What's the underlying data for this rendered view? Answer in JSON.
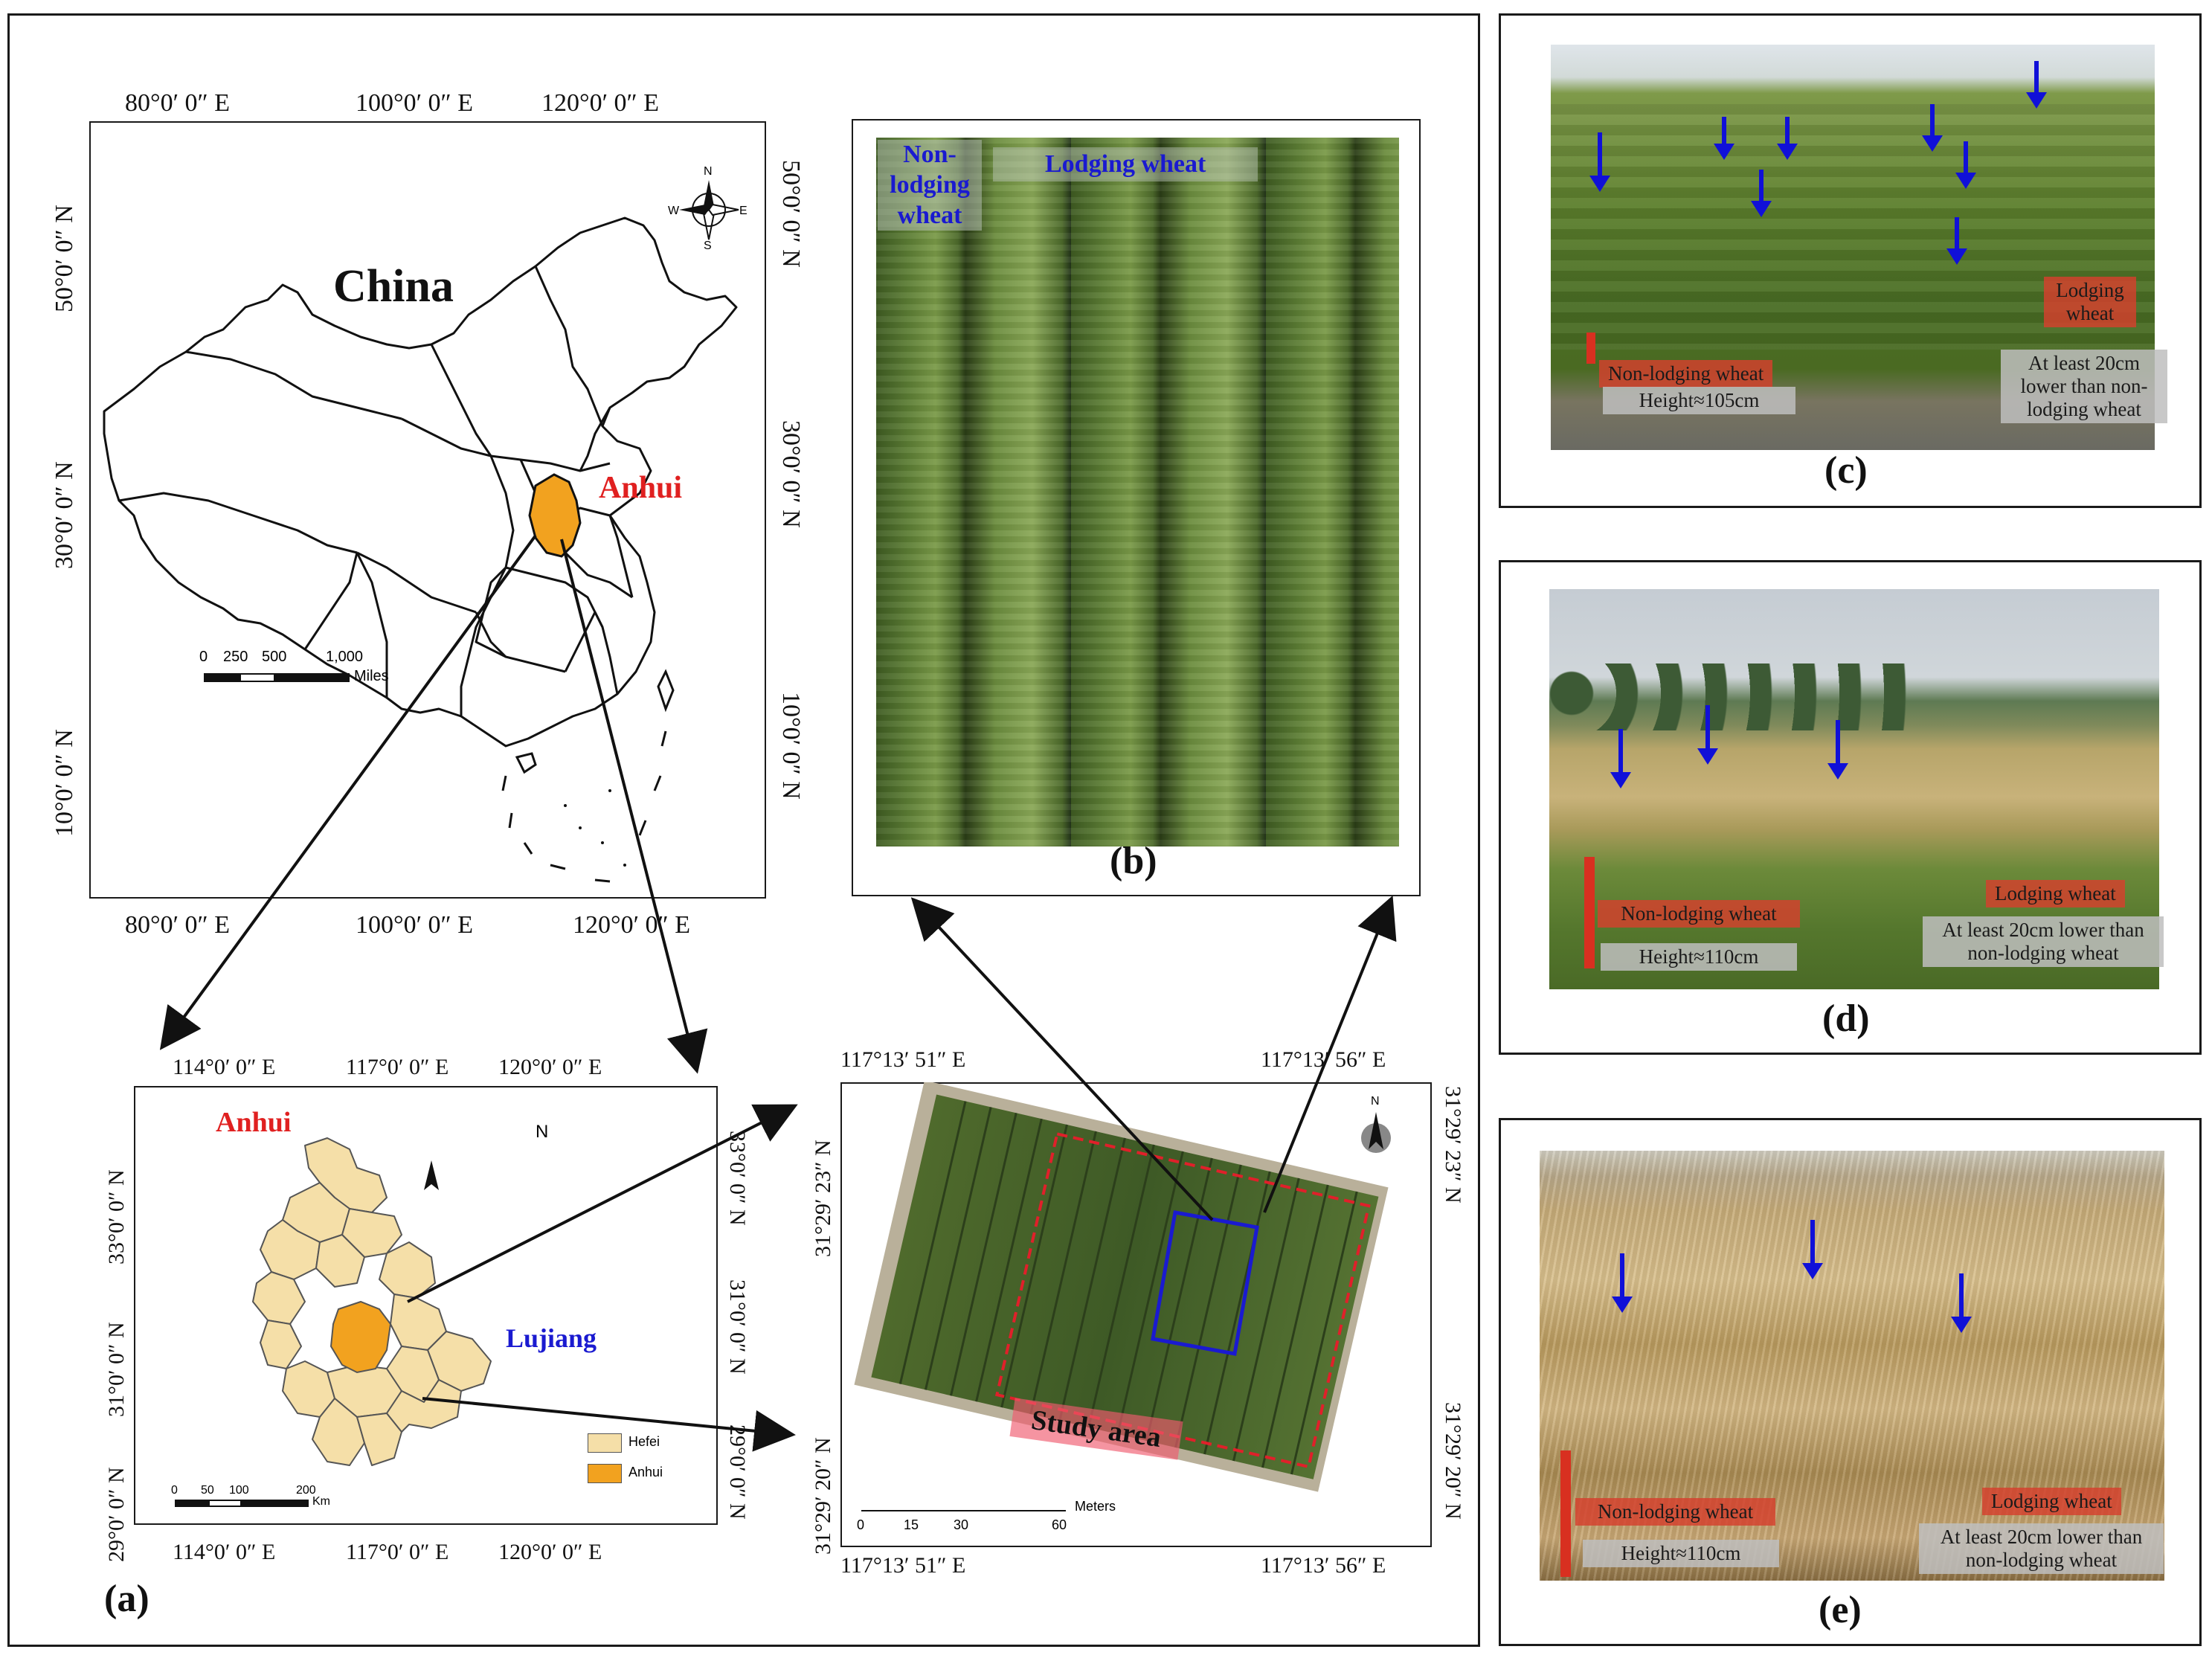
{
  "panel_a": {
    "label": "(a)",
    "china_map": {
      "title": "China",
      "province": "Anhui",
      "top_ticks": [
        "80°0′ 0″ E",
        "100°0′ 0″ E",
        "120°0′ 0″ E"
      ],
      "bottom_ticks": [
        "80°0′ 0″ E",
        "100°0′ 0″ E",
        "120°0′ 0″ E"
      ],
      "left_ticks": [
        "50°0′ 0″ N",
        "30°0′ 0″ N",
        "10°0′ 0″ N"
      ],
      "right_ticks": [
        "50°0′ 0″ N",
        "30°0′ 0″ N",
        "10°0′ 0″ N"
      ],
      "scale_labels": [
        "0",
        "250",
        "500",
        "1,000"
      ],
      "scale_unit": "Miles",
      "compass": [
        "N",
        "E",
        "S",
        "W"
      ]
    },
    "anhui_map": {
      "title": "Anhui",
      "county": "Lujiang",
      "top_ticks": [
        "114°0′ 0″ E",
        "117°0′ 0″ E",
        "120°0′ 0″ E"
      ],
      "bottom_ticks": [
        "114°0′ 0″ E",
        "117°0′ 0″ E",
        "120°0′ 0″ E"
      ],
      "left_ticks": [
        "33°0′ 0″ N",
        "31°0′ 0″ N",
        "29°0′ 0″ N"
      ],
      "right_ticks": [
        "33°0′ 0″ N",
        "31°0′ 0″ N",
        "29°0′ 0″ N"
      ],
      "scale_labels": [
        "0",
        "50",
        "100",
        "200"
      ],
      "scale_unit": "Km",
      "north": "N",
      "legend": [
        {
          "label": "Hefei",
          "color": "#f5dfa8"
        },
        {
          "label": "Anhui",
          "color": "#f2a21f"
        }
      ]
    },
    "study_map": {
      "top_ticks": [
        "117°13′ 51″ E",
        "117°13′ 56″ E"
      ],
      "bottom_ticks": [
        "117°13′ 51″ E",
        "117°13′ 56″ E"
      ],
      "left_ticks": [
        "31°29′ 23″ N",
        "31°29′ 20″ N"
      ],
      "right_ticks": [
        "31°29′ 23″ N",
        "31°29′ 20″ N"
      ],
      "scale_labels": [
        "0",
        "15",
        "30",
        "60"
      ],
      "scale_unit": "Meters",
      "study_area": "Study area",
      "north": "N"
    }
  },
  "panel_b": {
    "label": "(b)",
    "non_lodging": "Non-lodging wheat",
    "lodging": "Lodging wheat"
  },
  "panel_c": {
    "label": "(c)",
    "lodging": "Lodging wheat",
    "non_lodging": "Non-lodging wheat",
    "height": "Height≈105cm",
    "note": "At least 20cm lower than non-lodging wheat"
  },
  "panel_d": {
    "label": "(d)",
    "lodging": "Lodging wheat",
    "non_lodging": "Non-lodging wheat",
    "height": "Height≈110cm",
    "note": "At least 20cm lower than non-lodging wheat"
  },
  "panel_e": {
    "label": "(e)",
    "lodging": "Lodging wheat",
    "non_lodging": "Non-lodging wheat",
    "height": "Height≈110cm",
    "note": "At least 20cm lower than non-lodging wheat"
  },
  "colors": {
    "anhui_red": "#e02020",
    "lujiang_blue": "#1a1ad0",
    "arrow_blue": "#1010d8",
    "anhui_fill": "#f2a21f",
    "hefei_fill": "#f5dfa8"
  }
}
